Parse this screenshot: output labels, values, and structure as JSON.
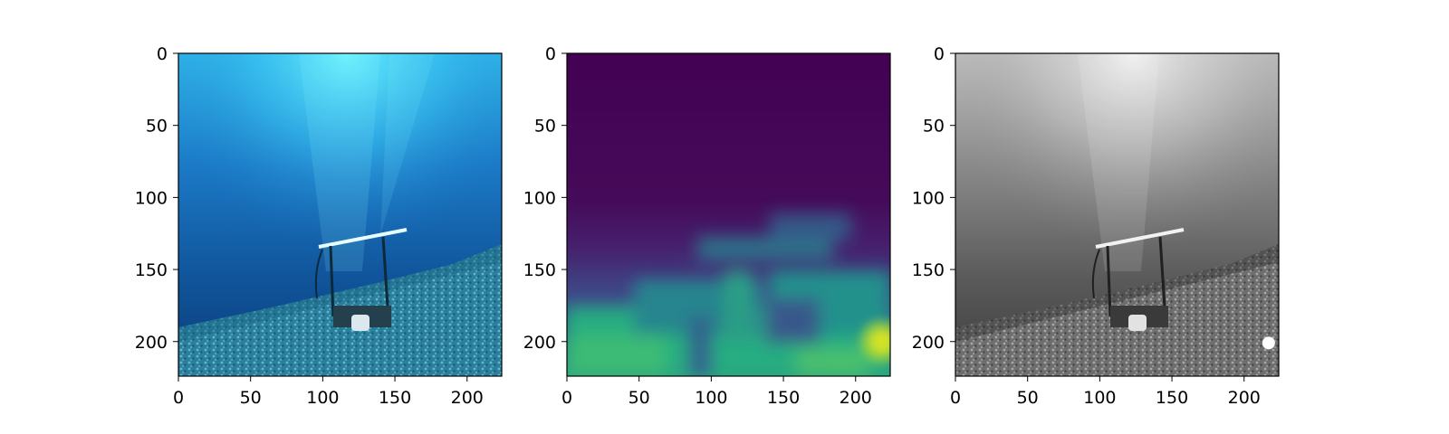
{
  "chart_data": [
    {
      "type": "heatmap",
      "content": "rgb underwater photo",
      "colormap": "rgb",
      "xlim": [
        0,
        224
      ],
      "ylim": [
        224,
        0
      ],
      "xticks": [
        0,
        50,
        100,
        150,
        200
      ],
      "yticks": [
        0,
        50,
        100,
        150,
        200
      ],
      "grid": false
    },
    {
      "type": "heatmap",
      "content": "viridis map",
      "colormap": "viridis",
      "xlim": [
        0,
        224
      ],
      "ylim": [
        224,
        0
      ],
      "xticks": [
        0,
        50,
        100,
        150,
        200
      ],
      "yticks": [
        0,
        50,
        100,
        150,
        200
      ],
      "grid": false,
      "hotspot": {
        "x": 218,
        "y": 200
      }
    },
    {
      "type": "heatmap",
      "content": "grayscale underwater photo",
      "colormap": "gray",
      "xlim": [
        0,
        224
      ],
      "ylim": [
        224,
        0
      ],
      "xticks": [
        0,
        50,
        100,
        150,
        200
      ],
      "yticks": [
        0,
        50,
        100,
        150,
        200
      ],
      "grid": false,
      "marker": {
        "x": 217,
        "y": 201,
        "color": "#ffffff"
      }
    }
  ]
}
